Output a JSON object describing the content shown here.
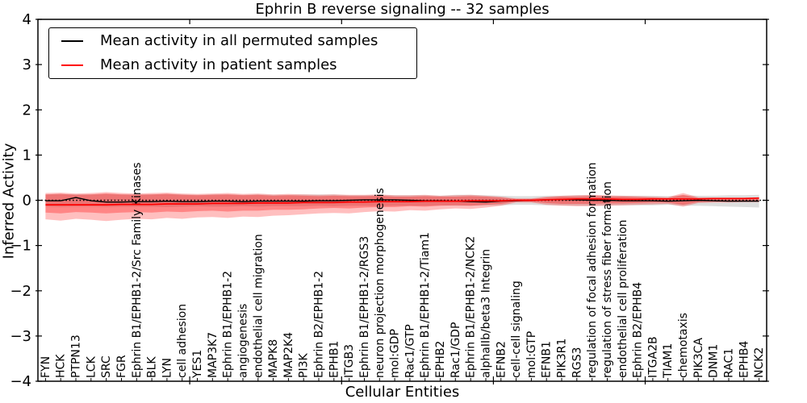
{
  "legend": {
    "entries": [
      {
        "label": "Mean activity in all permuted samples",
        "color": "#000000"
      },
      {
        "label": "Mean activity in patient samples",
        "color": "#ff0000"
      }
    ]
  },
  "axes": {
    "ytick_labels": [
      "4",
      "3",
      "2",
      "1",
      "0",
      "−1",
      "−2",
      "−3",
      "−4"
    ],
    "ytick_values": [
      4,
      3,
      2,
      1,
      0,
      -1,
      -2,
      -3,
      -4
    ]
  },
  "colors": {
    "permuted_line": "#000000",
    "patient_line": "#ff0000",
    "permuted_band": "#999999",
    "patient_band": "#ff0000",
    "spine": "#000000"
  },
  "chart_data": {
    "type": "line",
    "title": "Ephrin B reverse signaling -- 32 samples",
    "xlabel": "Cellular Entities",
    "ylabel": "Inferred Activity",
    "ylim": [
      -4,
      4
    ],
    "grid": false,
    "legend_position": "upper left",
    "x_major_ticks": [
      10,
      20,
      30,
      40
    ],
    "categories": [
      "FYN",
      "HCK",
      "PTPN13",
      "LCK",
      "SRC",
      "FGR",
      "Ephrin B1/EPHB1-2/Src Family Kinases",
      "BLK",
      "LYN",
      "cell adhesion",
      "YES1",
      "MAP3K7",
      "Ephrin B1/EPHB1-2",
      "angiogenesis",
      "endothelial cell migration",
      "MAPK8",
      "MAP2K4",
      "PI3K",
      "Ephrin B2/EPHB1-2",
      "EPHB1",
      "ITGB3",
      "Ephrin B1/EPHB1-2/RGS3",
      "neuron projection morphogenesis",
      "mol:GDP",
      "Rac1/GTP",
      "Ephrin B1/EPHB1-2/Tiam1",
      "EPHB2",
      "Rac1/GDP",
      "Ephrin B1/EPHB1-2/NCK2",
      "alphaIIb/beta3 Integrin",
      "EFNB2",
      "cell-cell signaling",
      "mol:GTP",
      "EFNB1",
      "PIK3R1",
      "RGS3",
      "regulation of focal adhesion formation",
      "regulation of stress fiber formation",
      "endothelial cell proliferation",
      "Ephrin B2/EPHB4",
      "ITGA2B",
      "TIAM1",
      "chemotaxis",
      "PIK3CA",
      "DNM1",
      "RAC1",
      "EPHB4",
      "NCK2"
    ],
    "reference_line": 0,
    "series": [
      {
        "name": "Mean activity in all permuted samples",
        "color": "#000000",
        "style": "solid",
        "width": 1.4,
        "values": [
          -0.01,
          -0.01,
          0.06,
          -0.01,
          -0.04,
          -0.04,
          -0.03,
          -0.03,
          -0.02,
          -0.03,
          -0.03,
          -0.02,
          -0.02,
          -0.03,
          -0.02,
          -0.02,
          -0.02,
          -0.02,
          -0.01,
          -0.01,
          0.0,
          0.01,
          0.01,
          0.01,
          0.0,
          -0.01,
          -0.01,
          -0.02,
          -0.03,
          -0.04,
          -0.02,
          -0.01,
          0.0,
          0.01,
          0.02,
          0.01,
          0.0,
          0.0,
          -0.01,
          -0.01,
          -0.01,
          -0.02,
          -0.01,
          0.0,
          -0.01,
          -0.02,
          -0.02,
          -0.02
        ]
      },
      {
        "name": "Mean activity in patient samples",
        "color": "#ff0000",
        "style": "solid",
        "width": 1.7,
        "values": [
          -0.1,
          -0.1,
          -0.1,
          -0.1,
          -0.1,
          -0.09,
          -0.09,
          -0.09,
          -0.08,
          -0.08,
          -0.08,
          -0.07,
          -0.07,
          -0.07,
          -0.06,
          -0.06,
          -0.06,
          -0.05,
          -0.05,
          -0.05,
          -0.04,
          -0.04,
          -0.03,
          -0.03,
          -0.03,
          -0.02,
          -0.02,
          -0.02,
          -0.01,
          -0.01,
          -0.01,
          0.0,
          0.0,
          0.01,
          0.02,
          0.03,
          0.03,
          0.03,
          0.02,
          0.02,
          0.03,
          0.03,
          0.03,
          0.03,
          0.04,
          0.04,
          0.04,
          0.05
        ]
      }
    ],
    "bands": [
      {
        "name": "permuted-range",
        "color": "#999999",
        "opacity": 0.32,
        "upper": [
          0.13,
          0.14,
          0.13,
          0.13,
          0.14,
          0.13,
          0.13,
          0.13,
          0.14,
          0.13,
          0.12,
          0.13,
          0.13,
          0.12,
          0.13,
          0.12,
          0.12,
          0.13,
          0.13,
          0.13,
          0.11,
          0.11,
          0.12,
          0.11,
          0.11,
          0.11,
          0.1,
          0.12,
          0.12,
          0.11,
          0.1,
          0.09,
          0.09,
          0.1,
          0.1,
          0.11,
          0.11,
          0.1,
          0.1,
          0.1,
          0.1,
          0.09,
          0.11,
          0.1,
          0.1,
          0.11,
          0.11,
          0.12
        ],
        "lower": [
          -0.14,
          -0.15,
          -0.14,
          -0.14,
          -0.15,
          -0.14,
          -0.14,
          -0.14,
          -0.15,
          -0.14,
          -0.13,
          -0.14,
          -0.14,
          -0.13,
          -0.14,
          -0.13,
          -0.13,
          -0.13,
          -0.12,
          -0.13,
          -0.12,
          -0.12,
          -0.13,
          -0.12,
          -0.12,
          -0.12,
          -0.11,
          -0.12,
          -0.12,
          -0.11,
          -0.11,
          -0.1,
          -0.1,
          -0.11,
          -0.11,
          -0.12,
          -0.12,
          -0.11,
          -0.11,
          -0.11,
          -0.11,
          -0.1,
          -0.12,
          -0.12,
          -0.13,
          -0.14,
          -0.15,
          -0.16
        ]
      },
      {
        "name": "patient-range-outer",
        "color": "#ff0000",
        "opacity": 0.25,
        "upper": [
          0.16,
          0.17,
          0.15,
          0.16,
          0.18,
          0.16,
          0.15,
          0.16,
          0.17,
          0.15,
          0.14,
          0.15,
          0.16,
          0.14,
          0.15,
          0.13,
          0.14,
          0.13,
          0.12,
          0.13,
          0.12,
          0.12,
          0.13,
          0.11,
          0.11,
          0.12,
          0.1,
          0.11,
          0.12,
          0.1,
          0.08,
          0.04,
          0.04,
          0.08,
          0.1,
          0.11,
          0.12,
          0.11,
          0.1,
          0.09,
          0.08,
          0.07,
          0.16,
          0.07,
          0.06,
          0.06,
          0.06,
          0.06
        ],
        "lower": [
          -0.42,
          -0.45,
          -0.41,
          -0.43,
          -0.46,
          -0.43,
          -0.41,
          -0.42,
          -0.39,
          -0.41,
          -0.38,
          -0.37,
          -0.39,
          -0.36,
          -0.37,
          -0.34,
          -0.33,
          -0.31,
          -0.29,
          -0.28,
          -0.29,
          -0.26,
          -0.24,
          -0.25,
          -0.22,
          -0.23,
          -0.2,
          -0.18,
          -0.19,
          -0.16,
          -0.12,
          -0.05,
          -0.05,
          -0.1,
          -0.12,
          -0.13,
          -0.13,
          -0.12,
          -0.11,
          -0.1,
          -0.09,
          -0.08,
          -0.14,
          -0.06,
          -0.05,
          -0.05,
          -0.04,
          -0.04
        ]
      },
      {
        "name": "patient-range-inner",
        "color": "#ff0000",
        "opacity": 0.3,
        "upper": [
          0.13,
          0.14,
          0.12,
          0.13,
          0.15,
          0.13,
          0.12,
          0.13,
          0.14,
          0.12,
          0.11,
          0.12,
          0.13,
          0.11,
          0.12,
          0.1,
          0.11,
          0.1,
          0.09,
          0.1,
          0.09,
          0.09,
          0.1,
          0.08,
          0.08,
          0.09,
          0.08,
          0.08,
          0.09,
          0.08,
          0.06,
          0.03,
          0.03,
          0.06,
          0.08,
          0.08,
          0.09,
          0.08,
          0.08,
          0.07,
          0.06,
          0.05,
          0.12,
          0.05,
          0.05,
          0.05,
          0.05,
          0.05
        ],
        "lower": [
          -0.27,
          -0.29,
          -0.26,
          -0.27,
          -0.29,
          -0.27,
          -0.26,
          -0.27,
          -0.25,
          -0.26,
          -0.24,
          -0.23,
          -0.25,
          -0.23,
          -0.23,
          -0.21,
          -0.21,
          -0.2,
          -0.18,
          -0.17,
          -0.18,
          -0.16,
          -0.15,
          -0.15,
          -0.13,
          -0.14,
          -0.12,
          -0.11,
          -0.12,
          -0.1,
          -0.08,
          -0.03,
          -0.03,
          -0.06,
          -0.08,
          -0.08,
          -0.08,
          -0.07,
          -0.07,
          -0.06,
          -0.05,
          -0.05,
          -0.1,
          -0.04,
          -0.03,
          -0.03,
          -0.03,
          -0.03
        ]
      }
    ]
  }
}
